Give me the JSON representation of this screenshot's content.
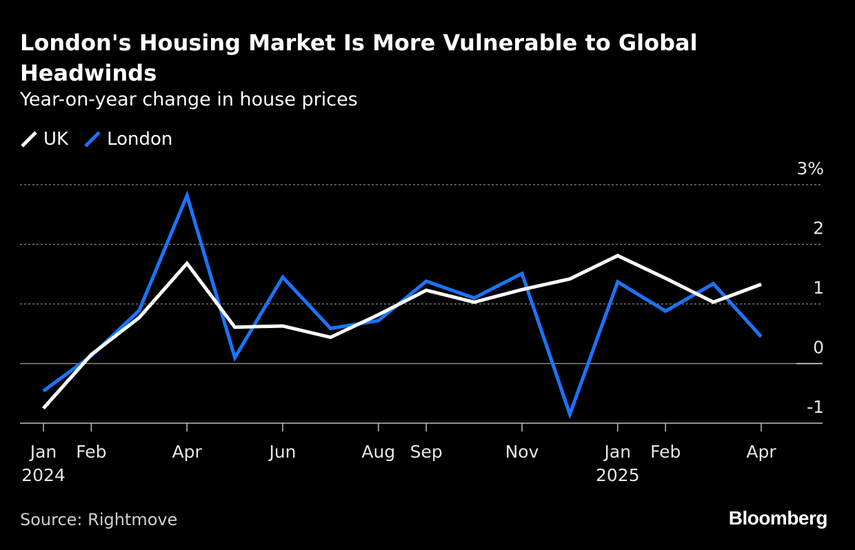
{
  "chart_data": {
    "type": "line",
    "title": "London's Housing Market Is More Vulnerable to Global Headwinds",
    "subtitle": "Year-on-year change in house prices",
    "ylim": [
      -1,
      3
    ],
    "y_ticks": [
      "3%",
      "2",
      "1",
      "0",
      "-1"
    ],
    "y_tick_values": [
      3,
      2,
      1,
      0,
      -1
    ],
    "grid": true,
    "legend_position": "top-left",
    "x": [
      "2024-01",
      "2024-02",
      "2024-03",
      "2024-04",
      "2024-05",
      "2024-06",
      "2024-07",
      "2024-08",
      "2024-09",
      "2024-10",
      "2024-11",
      "2024-12",
      "2025-01",
      "2025-02",
      "2025-03",
      "2025-04"
    ],
    "x_ticks": [
      {
        "month": "2024-01",
        "label": "Jan",
        "year": "2024"
      },
      {
        "month": "2024-02",
        "label": "Feb",
        "year": ""
      },
      {
        "month": "2024-04",
        "label": "Apr",
        "year": ""
      },
      {
        "month": "2024-06",
        "label": "Jun",
        "year": ""
      },
      {
        "month": "2024-08",
        "label": "Aug",
        "year": ""
      },
      {
        "month": "2024-09",
        "label": "Sep",
        "year": ""
      },
      {
        "month": "2024-11",
        "label": "Nov",
        "year": ""
      },
      {
        "month": "2025-01",
        "label": "Jan",
        "year": "2025"
      },
      {
        "month": "2025-02",
        "label": "Feb",
        "year": ""
      },
      {
        "month": "2025-04",
        "label": "Apr",
        "year": ""
      }
    ],
    "series": [
      {
        "name": "UK",
        "color": "#ffffff",
        "values": [
          -0.75,
          0.15,
          0.77,
          1.68,
          0.61,
          0.63,
          0.44,
          0.82,
          1.23,
          1.03,
          1.24,
          1.42,
          1.81,
          1.43,
          1.03,
          1.33
        ]
      },
      {
        "name": "London",
        "color": "#1a74ff",
        "values": [
          -0.46,
          0.13,
          0.89,
          2.82,
          0.1,
          1.45,
          0.59,
          0.72,
          1.38,
          1.1,
          1.51,
          -0.85,
          1.37,
          0.88,
          1.34,
          0.45
        ]
      }
    ]
  },
  "footer": {
    "source": "Source: Rightmove",
    "brand": "Bloomberg"
  }
}
